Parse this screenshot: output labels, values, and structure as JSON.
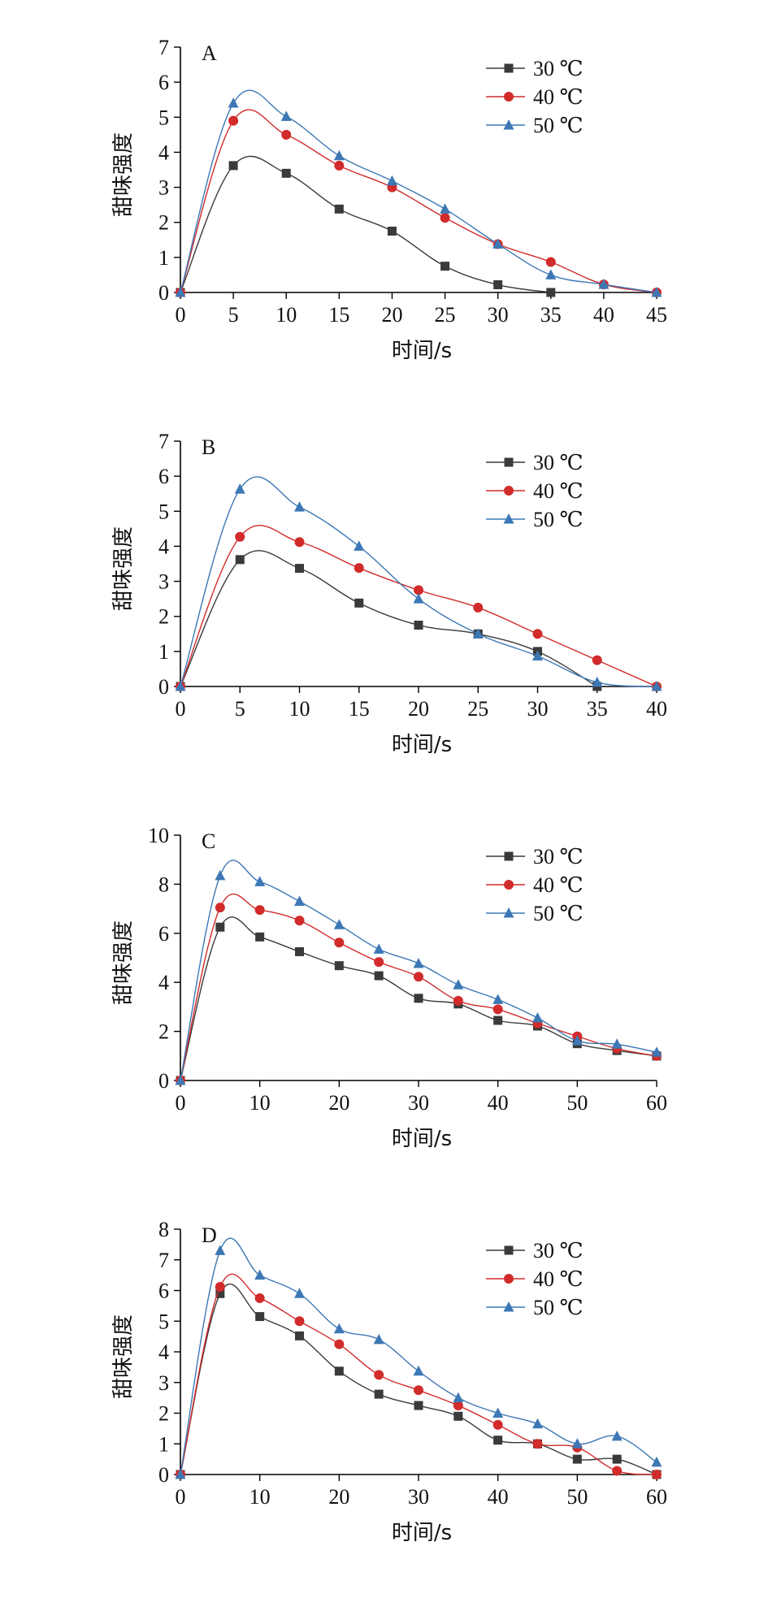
{
  "chart_data": [
    {
      "type": "line",
      "panel_label": "A",
      "xlabel": "时间/s",
      "ylabel": "甜味强度",
      "xlim": [
        0,
        45
      ],
      "ylim": [
        0,
        7
      ],
      "xticks": [
        0,
        5,
        10,
        15,
        20,
        25,
        30,
        35,
        40,
        45
      ],
      "yticks": [
        0,
        1,
        2,
        3,
        4,
        5,
        6,
        7
      ],
      "legend_position": "top-right",
      "x": [
        0,
        5,
        10,
        15,
        20,
        25,
        30,
        35,
        40,
        45
      ],
      "series": [
        {
          "name": "30 ℃",
          "color": "#3a3a3a",
          "marker": "square",
          "values": [
            0,
            3.62,
            3.4,
            2.38,
            1.75,
            0.75,
            0.22,
            0,
            null,
            null
          ]
        },
        {
          "name": "40 ℃",
          "color": "#d12b2b",
          "marker": "circle",
          "values": [
            0,
            4.9,
            4.5,
            3.62,
            3.0,
            2.13,
            1.38,
            0.87,
            0.23,
            0
          ]
        },
        {
          "name": "50 ℃",
          "color": "#3d78b5",
          "marker": "triangle",
          "values": [
            0,
            5.4,
            5.02,
            3.9,
            3.18,
            2.38,
            1.38,
            0.5,
            0.23,
            0
          ]
        }
      ]
    },
    {
      "type": "line",
      "panel_label": "B",
      "xlabel": "时间/s",
      "ylabel": "甜味强度",
      "xlim": [
        0,
        40
      ],
      "ylim": [
        0,
        7
      ],
      "xticks": [
        0,
        5,
        10,
        15,
        20,
        25,
        30,
        35,
        40
      ],
      "yticks": [
        0,
        1,
        2,
        3,
        4,
        5,
        6,
        7
      ],
      "legend_position": "top-right",
      "x": [
        0,
        5,
        10,
        15,
        20,
        25,
        30,
        35,
        40
      ],
      "series": [
        {
          "name": "30 ℃",
          "color": "#3a3a3a",
          "marker": "square",
          "values": [
            0,
            3.62,
            3.37,
            2.38,
            1.75,
            1.5,
            1.0,
            0,
            null
          ]
        },
        {
          "name": "40 ℃",
          "color": "#d12b2b",
          "marker": "circle",
          "values": [
            0,
            4.27,
            4.12,
            3.38,
            2.75,
            2.25,
            1.5,
            0.75,
            0
          ]
        },
        {
          "name": "50 ℃",
          "color": "#3d78b5",
          "marker": "triangle",
          "values": [
            0,
            5.63,
            5.12,
            4.0,
            2.5,
            1.5,
            0.87,
            0.12,
            0
          ]
        }
      ]
    },
    {
      "type": "line",
      "panel_label": "C",
      "xlabel": "时间/s",
      "ylabel": "甜味强度",
      "xlim": [
        0,
        60
      ],
      "ylim": [
        0,
        10
      ],
      "xticks": [
        0,
        10,
        20,
        30,
        40,
        50,
        60
      ],
      "yticks": [
        0,
        2,
        4,
        6,
        8,
        10
      ],
      "legend_position": "top-right",
      "x": [
        0,
        5,
        10,
        15,
        20,
        25,
        30,
        35,
        40,
        45,
        50,
        55,
        60
      ],
      "series": [
        {
          "name": "30 ℃",
          "color": "#3a3a3a",
          "marker": "square",
          "values": [
            0,
            6.25,
            5.85,
            5.25,
            4.68,
            4.27,
            3.35,
            3.12,
            2.45,
            2.22,
            1.5,
            1.22,
            1.0
          ]
        },
        {
          "name": "40 ℃",
          "color": "#d12b2b",
          "marker": "circle",
          "values": [
            0,
            7.05,
            6.95,
            6.52,
            5.62,
            4.83,
            4.23,
            3.25,
            2.9,
            2.33,
            1.8,
            1.3,
            1.0
          ]
        },
        {
          "name": "50 ℃",
          "color": "#3d78b5",
          "marker": "triangle",
          "values": [
            0,
            8.35,
            8.1,
            7.3,
            6.35,
            5.35,
            4.77,
            3.9,
            3.3,
            2.55,
            1.62,
            1.48,
            1.15
          ]
        }
      ]
    },
    {
      "type": "line",
      "panel_label": "D",
      "xlabel": "时间/s",
      "ylabel": "甜味强度",
      "xlim": [
        0,
        60
      ],
      "ylim": [
        0,
        8
      ],
      "xticks": [
        0,
        10,
        20,
        30,
        40,
        50,
        60
      ],
      "yticks": [
        0,
        1,
        2,
        3,
        4,
        5,
        6,
        7,
        8
      ],
      "legend_position": "top-right",
      "x": [
        0,
        5,
        10,
        15,
        20,
        25,
        30,
        35,
        40,
        45,
        50,
        55,
        60
      ],
      "series": [
        {
          "name": "30 ℃",
          "color": "#3a3a3a",
          "marker": "square",
          "values": [
            0,
            5.9,
            5.15,
            4.52,
            3.37,
            2.62,
            2.25,
            1.9,
            1.12,
            1.0,
            0.5,
            0.5,
            0
          ]
        },
        {
          "name": "40 ℃",
          "color": "#d12b2b",
          "marker": "circle",
          "values": [
            0,
            6.12,
            5.75,
            5.0,
            4.25,
            3.25,
            2.75,
            2.25,
            1.62,
            1.0,
            0.88,
            0.12,
            0
          ]
        },
        {
          "name": "50 ℃",
          "color": "#3d78b5",
          "marker": "triangle",
          "values": [
            0,
            7.3,
            6.5,
            5.9,
            4.75,
            4.4,
            3.37,
            2.5,
            2.0,
            1.65,
            1.0,
            1.25,
            0.4
          ]
        }
      ]
    }
  ]
}
